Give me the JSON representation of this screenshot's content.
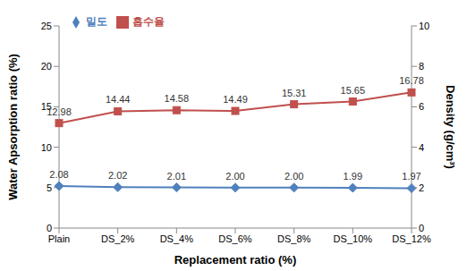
{
  "chart_data": {
    "type": "line",
    "categories": [
      "Plain",
      "DS_2%",
      "DS_4%",
      "DS_6%",
      "DS_8%",
      "DS_10%",
      "DS_12%"
    ],
    "series": [
      {
        "name": "흡수율",
        "color": "#c0504d",
        "marker": "square",
        "values": [
          12.98,
          14.44,
          14.58,
          14.49,
          15.31,
          15.65,
          16.78
        ]
      },
      {
        "name": "밀도",
        "color": "#4f81bd",
        "marker": "diamond",
        "axis": "y2",
        "values": [
          2.08,
          2.02,
          2.01,
          2.0,
          2.0,
          1.99,
          1.97
        ],
        "value_labels": [
          "2.08",
          "2.02",
          "2.01",
          "2.00",
          "2.00",
          "1.99",
          "1.97"
        ]
      }
    ],
    "x_label": "Replacement ratio (%)",
    "y_label": "Water Apsorption ratio (%)",
    "y2_label": "Density (g/cm³)",
    "ylim": [
      0,
      25
    ],
    "yticks": [
      0,
      5,
      10,
      15,
      20,
      25
    ],
    "y2lim": [
      0,
      10
    ],
    "y2ticks": [
      0,
      2,
      4,
      6,
      8,
      10
    ],
    "grid": false,
    "legend": "upper left",
    "data_labels": true
  }
}
